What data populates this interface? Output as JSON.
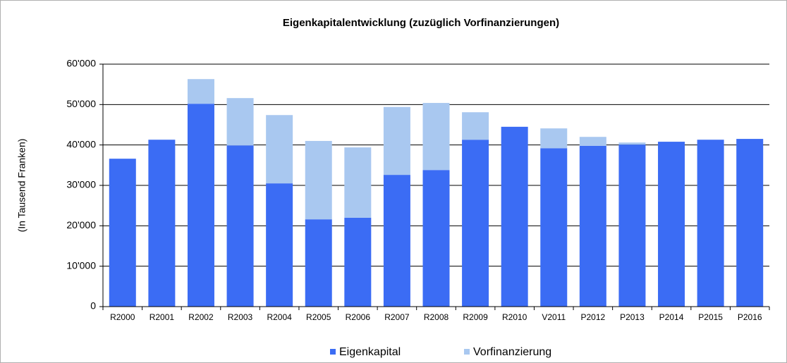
{
  "chart_data": {
    "type": "stacked_bar",
    "title": "Eigenkapitalentwicklung  (zuzüglich Vorfinanzierungen)",
    "y_label": "(In Tausend Franken)",
    "categories": [
      "R2000",
      "R2001",
      "R2002",
      "R2003",
      "R2004",
      "R2005",
      "R2006",
      "R2007",
      "R2008",
      "R2009",
      "R2010",
      "V2011",
      "P2012",
      "P2013",
      "P2014",
      "P2015",
      "P2016"
    ],
    "series": [
      {
        "name": "Eigenkapital",
        "color": "#3b6cf4",
        "values": [
          36600,
          41300,
          50200,
          39900,
          30500,
          21600,
          22000,
          32600,
          33800,
          41300,
          44500,
          39200,
          39800,
          40100,
          40800,
          41300,
          41500
        ]
      },
      {
        "name": "Vorfinanzierung",
        "color": "#a9c8f0",
        "values": [
          0,
          0,
          6100,
          11700,
          16900,
          19400,
          17400,
          16800,
          16600,
          6800,
          0,
          4900,
          2200,
          500,
          0,
          0,
          0
        ]
      }
    ],
    "ylim": [
      0,
      60000
    ],
    "yticks": [
      0,
      {
        "value": 10000,
        "label": "10'000"
      },
      {
        "value": 20000,
        "label": "20'000"
      },
      {
        "value": 30000,
        "label": "30'000"
      },
      {
        "value": 40000,
        "label": "40'000"
      },
      {
        "value": 50000,
        "label": "50'000"
      },
      {
        "value": 60000,
        "label": "60'000"
      }
    ],
    "grid": true,
    "legend": "bottom"
  }
}
